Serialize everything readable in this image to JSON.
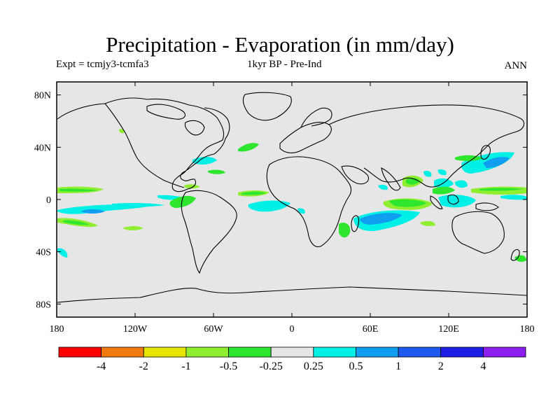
{
  "title": "Precipitation - Evaporation (in mm/day)",
  "subtitle_left": "Expt = tcmjy3-tcmfa3",
  "subtitle_center": "1kyr BP - Pre-Ind",
  "season": "ANN",
  "map": {
    "background_color": "#e6e6e6",
    "lat_labels": [
      "80N",
      "40N",
      "0",
      "40S",
      "80S"
    ],
    "lat_values": [
      80,
      40,
      0,
      -40,
      -80
    ],
    "lon_labels": [
      "180",
      "120W",
      "60W",
      "0",
      "60E",
      "120E",
      "180"
    ],
    "lon_values": [
      -180,
      -120,
      -60,
      0,
      60,
      120,
      180
    ],
    "lat_range": [
      -90,
      90
    ],
    "lon_range": [
      -180,
      180
    ]
  },
  "colorbar": {
    "labels": [
      "-4",
      "-2",
      "-1",
      "-0.5",
      "-0.25",
      "0.25",
      "0.5",
      "1",
      "2",
      "4"
    ],
    "colors": [
      "#ff0000",
      "#f07a10",
      "#e6e600",
      "#90ee30",
      "#2ee62e",
      "#e6e6e6",
      "#00f0e6",
      "#109ef0",
      "#1e5af0",
      "#1e1ee6",
      "#8c1ef0"
    ]
  },
  "chart_data": {
    "type": "heatmap",
    "title": "Precipitation - Evaporation (in mm/day)",
    "variable": "P-E anomaly (1kyr BP - Pre-Ind), annual mean",
    "levels": [
      -4,
      -2,
      -1,
      -0.5,
      -0.25,
      0.25,
      0.5,
      1,
      2,
      4
    ],
    "anomaly_regions": [
      {
        "lon": -165,
        "lat": 5,
        "class": "-0.5 to -0.25"
      },
      {
        "lon": -145,
        "lat": -20,
        "class": "-0.5 to -0.25"
      },
      {
        "lon": -140,
        "lat": -5,
        "class": "0.25 to 0.5"
      },
      {
        "lon": -150,
        "lat": -10,
        "class": "0.5 to 1"
      },
      {
        "lon": -80,
        "lat": -2,
        "class": "-0.5 to -0.25"
      },
      {
        "lon": -40,
        "lat": 5,
        "class": "-0.5 to -0.25"
      },
      {
        "lon": -30,
        "lat": 40,
        "class": "-0.5 to -0.25"
      },
      {
        "lon": -55,
        "lat": 30,
        "class": "0.25 to 0.5"
      },
      {
        "lon": -20,
        "lat": -5,
        "class": "0.25 to 0.5"
      },
      {
        "lon": 65,
        "lat": -5,
        "class": "-0.5 to -0.25"
      },
      {
        "lon": 70,
        "lat": -15,
        "class": "0.5 to 1"
      },
      {
        "lon": 40,
        "lat": -24,
        "class": "-0.5 to -0.25"
      },
      {
        "lon": 90,
        "lat": 15,
        "class": "-0.5 to -0.25"
      },
      {
        "lon": 115,
        "lat": 5,
        "class": "-0.5 to -0.25"
      },
      {
        "lon": 130,
        "lat": 3,
        "class": "0.5 to 1"
      },
      {
        "lon": 160,
        "lat": 5,
        "class": "-0.5 to -0.25"
      },
      {
        "lon": 150,
        "lat": 30,
        "class": "0.5 to 1"
      },
      {
        "lon": 155,
        "lat": -42,
        "class": "-0.5 to -0.25"
      }
    ]
  }
}
